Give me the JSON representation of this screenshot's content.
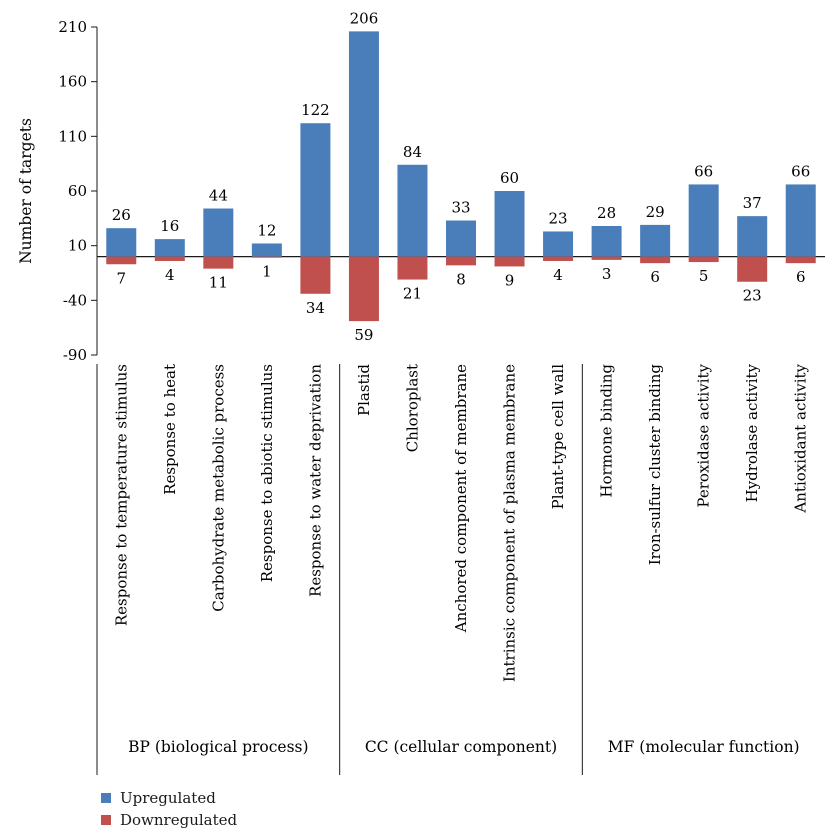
{
  "chart_data": {
    "type": "bar",
    "ylabel": "Number of targets",
    "yticks": [
      210,
      160,
      110,
      60,
      10,
      -40,
      -90
    ],
    "ylim": [
      -90,
      210
    ],
    "categories": [
      "Response to temperature stimulus",
      "Response to heat",
      "Carbohydrate metabolic process",
      "Response to abiotic stimulus",
      "Response to water deprivation",
      "Plastid",
      "Chloroplast",
      "Anchored component of membrane",
      "Intrinsic component of plasma membrane",
      "Plant-type cell wall",
      "Hormone binding",
      "Iron-sulfur cluster binding",
      "Peroxidase activity",
      "Hydrolase activity",
      "Antioxidant activity"
    ],
    "series": [
      {
        "name": "Upregulated",
        "color": "#4a7ebb",
        "values": [
          26,
          16,
          44,
          12,
          122,
          206,
          84,
          33,
          60,
          23,
          28,
          29,
          66,
          37,
          66
        ]
      },
      {
        "name": "Downregulated",
        "color": "#c0504d",
        "values": [
          7,
          4,
          11,
          1,
          34,
          59,
          21,
          8,
          9,
          4,
          3,
          6,
          5,
          23,
          6
        ]
      }
    ],
    "groups": [
      {
        "label": "BP (biological process)",
        "categories": 5
      },
      {
        "label": "CC (cellular component)",
        "categories": 5
      },
      {
        "label": "MF (molecular function)",
        "categories": 5
      }
    ],
    "legend_position": "bottom-left"
  },
  "legend": {
    "items": [
      {
        "label": "Upregulated",
        "color": "#4a7ebb"
      },
      {
        "label": "Downregulated",
        "color": "#c0504d"
      }
    ]
  }
}
